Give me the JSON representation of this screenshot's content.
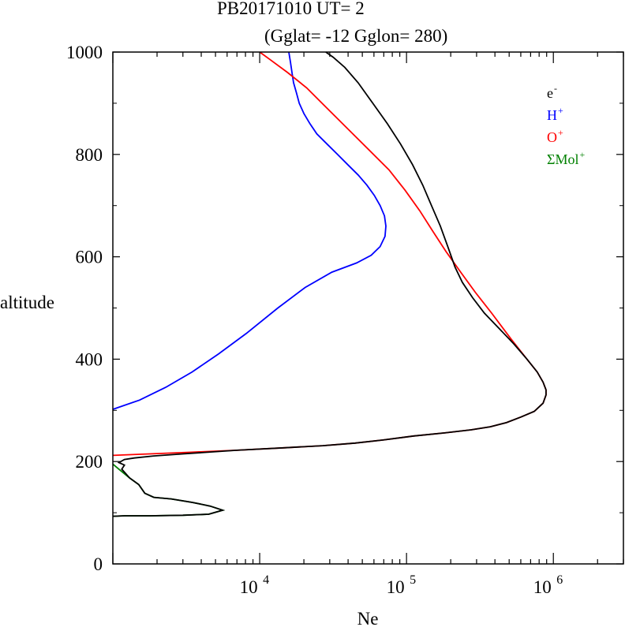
{
  "chart_data": {
    "type": "line",
    "title": "PB20171010   UT=  2",
    "subtitle": "(Gglat= -12   Gglon=  280)",
    "xlabel": "Ne",
    "ylabel": "altitude",
    "xscale": "log",
    "xlim": [
      1000,
      3000000
    ],
    "ylim": [
      0,
      1000
    ],
    "yticks": [
      0,
      200,
      400,
      600,
      800,
      1000
    ],
    "ytick_labels": [
      "0",
      "200",
      "400",
      "600",
      "800",
      "1000"
    ],
    "xticks": [
      {
        "value": 10000,
        "base": "10",
        "exp": "4"
      },
      {
        "value": 100000,
        "base": "10",
        "exp": "5"
      },
      {
        "value": 1000000,
        "base": "10",
        "exp": "6"
      }
    ],
    "grid": false,
    "legend_position": "top-right",
    "legend": [
      {
        "base": "e",
        "sup": "-",
        "color": "#000000"
      },
      {
        "base": "H",
        "sup": "+",
        "color": "#0000ff"
      },
      {
        "base": "O",
        "sup": "+",
        "color": "#ff0000"
      },
      {
        "base": "ΣMol",
        "sup": "+",
        "color": "#008000"
      }
    ],
    "series": [
      {
        "color": "#0000ff",
        "points": [
          [
            1000,
            302
          ],
          [
            1520,
            320
          ],
          [
            2290,
            345
          ],
          [
            3470,
            375
          ],
          [
            5240,
            410
          ],
          [
            8100,
            450
          ],
          [
            13300,
            500
          ],
          [
            20400,
            540
          ],
          [
            31000,
            570
          ],
          [
            45700,
            588
          ],
          [
            57500,
            603
          ],
          [
            66100,
            620
          ],
          [
            71400,
            640
          ],
          [
            72400,
            660
          ],
          [
            70800,
            680
          ],
          [
            66100,
            700
          ],
          [
            60300,
            720
          ],
          [
            53700,
            740
          ],
          [
            46800,
            760
          ],
          [
            39800,
            780
          ],
          [
            33900,
            800
          ],
          [
            28800,
            820
          ],
          [
            24500,
            840
          ],
          [
            22000,
            860
          ],
          [
            20000,
            880
          ],
          [
            18600,
            900
          ],
          [
            17800,
            920
          ],
          [
            17000,
            940
          ],
          [
            16600,
            960
          ],
          [
            16200,
            980
          ],
          [
            15800,
            1000
          ]
        ]
      },
      {
        "color": "#ff0000",
        "points": [
          [
            1000,
            212
          ],
          [
            3300,
            218
          ],
          [
            7000,
            222
          ],
          [
            15000,
            227
          ],
          [
            26900,
            231
          ],
          [
            44700,
            236
          ],
          [
            69200,
            242
          ],
          [
            112000,
            250
          ],
          [
            182000,
            256
          ],
          [
            275000,
            262
          ],
          [
            372000,
            268
          ],
          [
            479000,
            276
          ],
          [
            603000,
            287
          ],
          [
            741000,
            298
          ],
          [
            851000,
            314
          ],
          [
            891000,
            330
          ],
          [
            891000,
            340
          ],
          [
            851000,
            355
          ],
          [
            776000,
            375
          ],
          [
            661000,
            400
          ],
          [
            513000,
            440
          ],
          [
            380000,
            490
          ],
          [
            295000,
            530
          ],
          [
            234000,
            570
          ],
          [
            186000,
            610
          ],
          [
            151000,
            650
          ],
          [
            123000,
            690
          ],
          [
            97700,
            730
          ],
          [
            75900,
            770
          ],
          [
            55000,
            810
          ],
          [
            39800,
            850
          ],
          [
            28800,
            890
          ],
          [
            20900,
            930
          ],
          [
            15500,
            960
          ],
          [
            11800,
            985
          ],
          [
            10000,
            1000
          ]
        ]
      },
      {
        "color": "#008000",
        "points": [
          [
            1000,
            195
          ],
          [
            1100,
            185
          ],
          [
            1300,
            168
          ],
          [
            1500,
            155
          ],
          [
            1650,
            138
          ],
          [
            1900,
            130
          ],
          [
            2500,
            127
          ],
          [
            3500,
            120
          ],
          [
            4600,
            113
          ],
          [
            5600,
            105
          ],
          [
            4500,
            97
          ],
          [
            3000,
            95
          ],
          [
            1800,
            94
          ],
          [
            1200,
            94
          ],
          [
            1000,
            93
          ]
        ]
      },
      {
        "color": "#000000",
        "points": [
          [
            1000,
            93
          ],
          [
            1200,
            94
          ],
          [
            1800,
            94
          ],
          [
            3000,
            95
          ],
          [
            4500,
            97
          ],
          [
            5600,
            105
          ],
          [
            4600,
            113
          ],
          [
            3500,
            120
          ],
          [
            2500,
            127
          ],
          [
            1900,
            130
          ],
          [
            1650,
            138
          ],
          [
            1500,
            155
          ],
          [
            1300,
            168
          ],
          [
            1150,
            185
          ],
          [
            1200,
            193
          ],
          [
            1100,
            198
          ],
          [
            1200,
            204
          ],
          [
            1400,
            207
          ],
          [
            1900,
            211
          ],
          [
            3000,
            215
          ],
          [
            7000,
            222
          ],
          [
            15000,
            227
          ],
          [
            26900,
            231
          ],
          [
            44700,
            236
          ],
          [
            69200,
            242
          ],
          [
            112000,
            250
          ],
          [
            182000,
            256
          ],
          [
            275000,
            262
          ],
          [
            372000,
            268
          ],
          [
            479000,
            276
          ],
          [
            603000,
            287
          ],
          [
            741000,
            298
          ],
          [
            851000,
            314
          ],
          [
            891000,
            330
          ],
          [
            891000,
            340
          ],
          [
            851000,
            355
          ],
          [
            776000,
            375
          ],
          [
            661000,
            400
          ],
          [
            537000,
            430
          ],
          [
            427000,
            460
          ],
          [
            339000,
            490
          ],
          [
            282000,
            520
          ],
          [
            240000,
            550
          ],
          [
            214000,
            580
          ],
          [
            191000,
            620
          ],
          [
            170000,
            660
          ],
          [
            148000,
            700
          ],
          [
            129000,
            740
          ],
          [
            110000,
            780
          ],
          [
            91200,
            820
          ],
          [
            74100,
            860
          ],
          [
            58900,
            900
          ],
          [
            46800,
            940
          ],
          [
            38000,
            970
          ],
          [
            31600,
            990
          ],
          [
            28200,
            1000
          ]
        ]
      }
    ]
  }
}
